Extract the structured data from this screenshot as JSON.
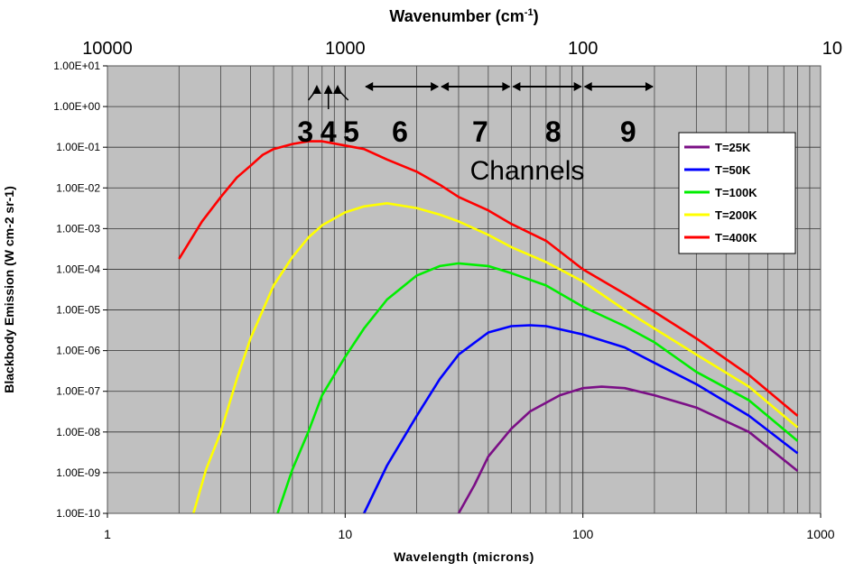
{
  "chart_data": {
    "type": "line",
    "title": "",
    "xlabel": "Wavelength (microns)",
    "ylabel": "Blackbody Emission (W cm-2 sr-1)",
    "top_axis_label": "Wavenumber (cm",
    "top_axis_label_sup": "-1",
    "top_axis_label_end": ")",
    "xscale": "log",
    "yscale": "log",
    "xlim": [
      1,
      1000
    ],
    "ylim": [
      1e-10,
      10
    ],
    "x_ticks": [
      {
        "value": 1,
        "label": "1"
      },
      {
        "value": 10,
        "label": "10"
      },
      {
        "value": 100,
        "label": "100"
      },
      {
        "value": 1000,
        "label": "1000"
      }
    ],
    "y_ticks": [
      {
        "value": 10,
        "label": "1.00E+01"
      },
      {
        "value": 1,
        "label": "1.00E+00"
      },
      {
        "value": 0.1,
        "label": "1.00E-01"
      },
      {
        "value": 0.01,
        "label": "1.00E-02"
      },
      {
        "value": 0.001,
        "label": "1.00E-03"
      },
      {
        "value": 0.0001,
        "label": "1.00E-04"
      },
      {
        "value": 1e-05,
        "label": "1.00E-05"
      },
      {
        "value": 1e-06,
        "label": "1.00E-06"
      },
      {
        "value": 1e-07,
        "label": "1.00E-07"
      },
      {
        "value": 1e-08,
        "label": "1.00E-08"
      },
      {
        "value": 1e-09,
        "label": "1.00E-09"
      },
      {
        "value": 1e-10,
        "label": "1.00E-10"
      }
    ],
    "top_ticks": [
      {
        "wavelength": 1,
        "label": "10000"
      },
      {
        "wavelength": 10,
        "label": "1000"
      },
      {
        "wavelength": 100,
        "label": "100"
      },
      {
        "wavelength": 1000,
        "label": "10"
      }
    ],
    "grid": true,
    "legend_position": "right",
    "series": [
      {
        "name": "T=25K",
        "color": "#7b0f86",
        "points": [
          [
            30,
            1e-10
          ],
          [
            35,
            5e-10
          ],
          [
            40,
            2.5e-09
          ],
          [
            50,
            1.2e-08
          ],
          [
            60,
            3.2e-08
          ],
          [
            80,
            8e-08
          ],
          [
            100,
            1.2e-07
          ],
          [
            120,
            1.3e-07
          ],
          [
            150,
            1.2e-07
          ],
          [
            200,
            8e-08
          ],
          [
            300,
            4e-08
          ],
          [
            500,
            1e-08
          ],
          [
            800,
            1.1e-09
          ]
        ]
      },
      {
        "name": "T=50K",
        "color": "#0000ff",
        "points": [
          [
            12,
            1e-10
          ],
          [
            15,
            1.5e-09
          ],
          [
            20,
            2.5e-08
          ],
          [
            25,
            2e-07
          ],
          [
            30,
            8e-07
          ],
          [
            40,
            2.8e-06
          ],
          [
            50,
            4e-06
          ],
          [
            60,
            4.2e-06
          ],
          [
            70,
            4e-06
          ],
          [
            100,
            2.5e-06
          ],
          [
            150,
            1.2e-06
          ],
          [
            200,
            5e-07
          ],
          [
            300,
            1.5e-07
          ],
          [
            500,
            2.5e-08
          ],
          [
            800,
            3e-09
          ]
        ]
      },
      {
        "name": "T=100K",
        "color": "#00ee00",
        "points": [
          [
            5.2,
            1e-10
          ],
          [
            6,
            1.2e-09
          ],
          [
            7,
            1e-08
          ],
          [
            8,
            8e-08
          ],
          [
            10,
            7e-07
          ],
          [
            12,
            3.5e-06
          ],
          [
            15,
            1.8e-05
          ],
          [
            20,
            7e-05
          ],
          [
            25,
            0.00012
          ],
          [
            30,
            0.00014
          ],
          [
            40,
            0.00012
          ],
          [
            50,
            8e-05
          ],
          [
            70,
            4e-05
          ],
          [
            100,
            1.2e-05
          ],
          [
            150,
            4e-06
          ],
          [
            200,
            1.6e-06
          ],
          [
            300,
            3e-07
          ],
          [
            500,
            6e-08
          ],
          [
            800,
            6e-09
          ]
        ]
      },
      {
        "name": "T=200K",
        "color": "#ffff00",
        "points": [
          [
            2.3,
            1e-10
          ],
          [
            2.6,
            1.2e-09
          ],
          [
            3,
            1e-08
          ],
          [
            3.5,
            2e-07
          ],
          [
            4,
            2e-06
          ],
          [
            5,
            4e-05
          ],
          [
            6,
            0.0002
          ],
          [
            7,
            0.0006
          ],
          [
            8,
            0.0012
          ],
          [
            10,
            0.0025
          ],
          [
            12,
            0.0035
          ],
          [
            15,
            0.0042
          ],
          [
            20,
            0.0032
          ],
          [
            25,
            0.0022
          ],
          [
            30,
            0.0015
          ],
          [
            40,
            0.0007
          ],
          [
            50,
            0.00035
          ],
          [
            70,
            0.00015
          ],
          [
            100,
            5e-05
          ],
          [
            150,
            1e-05
          ],
          [
            200,
            3.5e-06
          ],
          [
            300,
            8e-07
          ],
          [
            500,
            1.3e-07
          ],
          [
            800,
            1.3e-08
          ]
        ]
      },
      {
        "name": "T=400K",
        "color": "#ff0000",
        "points": [
          [
            2,
            0.00018
          ],
          [
            2.5,
            0.0015
          ],
          [
            3,
            0.006
          ],
          [
            3.5,
            0.018
          ],
          [
            4,
            0.035
          ],
          [
            4.5,
            0.065
          ],
          [
            5,
            0.09
          ],
          [
            6,
            0.12
          ],
          [
            7,
            0.14
          ],
          [
            8,
            0.14
          ],
          [
            10,
            0.11
          ],
          [
            12,
            0.09
          ],
          [
            15,
            0.05
          ],
          [
            20,
            0.025
          ],
          [
            25,
            0.012
          ],
          [
            30,
            0.006
          ],
          [
            40,
            0.0028
          ],
          [
            50,
            0.0013
          ],
          [
            70,
            0.0005
          ],
          [
            100,
            0.0001
          ],
          [
            150,
            2.5e-05
          ],
          [
            200,
            9e-06
          ],
          [
            300,
            2e-06
          ],
          [
            500,
            2.5e-07
          ],
          [
            800,
            2.5e-08
          ]
        ]
      }
    ],
    "annotations": {
      "channel_numbers": [
        {
          "label": "3",
          "x": 6.8
        },
        {
          "label": "4",
          "x": 8.5
        },
        {
          "label": "5",
          "x": 10.6
        },
        {
          "label": "6",
          "x": 17
        },
        {
          "label": "7",
          "x": 37
        },
        {
          "label": "8",
          "x": 75
        },
        {
          "label": "9",
          "x": 155
        }
      ],
      "channels_label": "Channels",
      "channel_ranges": [
        {
          "from": 12,
          "to": 25
        },
        {
          "from": 25,
          "to": 50
        },
        {
          "from": 50,
          "to": 100
        },
        {
          "from": 100,
          "to": 200
        }
      ]
    }
  }
}
